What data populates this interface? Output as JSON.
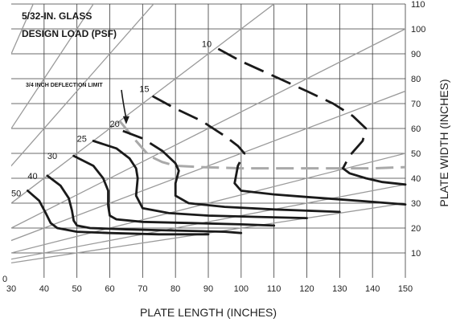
{
  "chart_data": {
    "type": "line",
    "title_lines": [
      "5/32-IN. GLASS",
      "DESIGN LOAD (PSF)"
    ],
    "xlabel": "PLATE LENGTH (INCHES)",
    "ylabel": "PLATE WIDTH (INCHES)",
    "xlim": [
      30,
      150
    ],
    "ylim": [
      0,
      110
    ],
    "x_ticks": [
      30,
      40,
      50,
      60,
      70,
      80,
      90,
      100,
      110,
      120,
      130,
      140,
      150
    ],
    "y_ticks": [
      0,
      10,
      20,
      30,
      40,
      50,
      60,
      70,
      80,
      90,
      100,
      110
    ],
    "grid": true,
    "aspect_ratio_lines": [
      {
        "slope": 0.2
      },
      {
        "slope": 0.25
      },
      {
        "slope": 0.3333
      },
      {
        "slope": 0.5
      },
      {
        "slope": 0.6667
      },
      {
        "slope": 1.0
      },
      {
        "slope": 1.5
      },
      {
        "slope": 2.0
      },
      {
        "slope": 3.0
      }
    ],
    "annotation": "3/4 INCH DEFLECTION LIMIT",
    "annotation_arrow_target": [
      65,
      62
    ],
    "deflection_limit": {
      "x": [
        63,
        68,
        72,
        76,
        80,
        88,
        100,
        120,
        140,
        150
      ],
      "y": [
        63,
        55,
        49,
        46.5,
        45,
        44.5,
        44,
        44,
        44,
        44.5
      ]
    },
    "series": [
      {
        "name": "10",
        "label": "10",
        "label_at": [
          91,
          94
        ],
        "x": [
          93,
          100,
          110,
          120,
          128,
          134,
          138,
          137,
          133,
          131,
          133,
          138,
          143,
          150
        ],
        "y": [
          92,
          87,
          81,
          75,
          70,
          65,
          60,
          55,
          49,
          44,
          42,
          40,
          38.5,
          37.5
        ],
        "dashed_until_index": 9
      },
      {
        "name": "15",
        "label": "15",
        "label_at": [
          72,
          76
        ],
        "x": [
          73,
          80,
          88,
          95,
          99,
          101,
          99,
          98,
          100,
          110,
          120,
          130,
          140,
          150
        ],
        "y": [
          73,
          68,
          63,
          57,
          53,
          50,
          45,
          38,
          35,
          33.5,
          32.5,
          31.5,
          30.5,
          29.5
        ],
        "dashed_until_index": 6
      },
      {
        "name": "20",
        "label": "20",
        "label_at": [
          63,
          62
        ],
        "x": [
          64,
          70,
          76,
          80,
          81,
          80,
          80,
          84,
          95,
          110,
          130
        ],
        "y": [
          59,
          56,
          51,
          46,
          43,
          38,
          33,
          30,
          28.5,
          27.5,
          26.5
        ],
        "dashed_until_index": 2
      },
      {
        "name": "25",
        "label": "25",
        "label_at": [
          53,
          56
        ],
        "x": [
          55,
          62,
          66,
          68,
          68.5,
          68,
          70,
          78,
          90,
          105,
          120
        ],
        "y": [
          55,
          52,
          48,
          44,
          40,
          33,
          28,
          26,
          25,
          24.5,
          24
        ]
      },
      {
        "name": "30",
        "label": "30",
        "label_at": [
          44,
          49
        ],
        "x": [
          49,
          55,
          58,
          59.5,
          59.5,
          60,
          62,
          70,
          85,
          100,
          110
        ],
        "y": [
          49,
          45,
          40,
          35,
          29,
          25,
          23.5,
          22.5,
          22,
          21.5,
          21
        ]
      },
      {
        "name": "40",
        "label": "40",
        "label_at": [
          38,
          41
        ],
        "x": [
          41,
          45,
          47.5,
          48.5,
          49,
          50,
          54,
          65,
          80,
          95,
          100
        ],
        "y": [
          41,
          37,
          32,
          27,
          23,
          21,
          20,
          19.5,
          19,
          18.5,
          18
        ]
      },
      {
        "name": "50",
        "label": "50",
        "label_at": [
          33,
          34
        ],
        "x": [
          35,
          38.5,
          40.5,
          42,
          44,
          50,
          60,
          75,
          90
        ],
        "y": [
          35,
          31,
          26,
          22,
          20,
          18.5,
          18,
          17.5,
          17.5
        ]
      }
    ]
  }
}
